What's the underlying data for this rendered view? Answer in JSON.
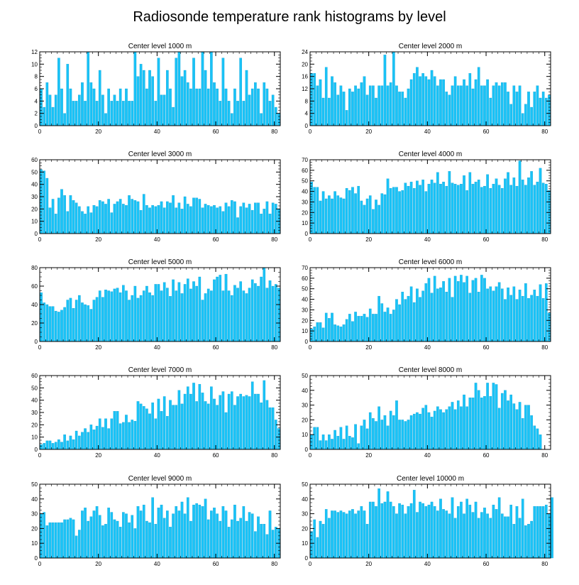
{
  "figure_title": "Radiosonde temperature rank histograms by level",
  "colors": {
    "bar": "#19c3f7",
    "bar_edge": "#0b9bd0",
    "axis": "#000000",
    "background": "#ffffff"
  },
  "chart_data": [
    {
      "type": "bar",
      "title": "Center level 1000 m",
      "x_ticks": [
        0,
        20,
        40,
        60,
        80
      ],
      "xlim": [
        0,
        82
      ],
      "ylim": [
        0,
        12
      ],
      "y_ticks": [
        0,
        2,
        4,
        6,
        8,
        10,
        12
      ],
      "values": [
        6,
        3,
        7,
        5,
        3,
        5,
        11,
        6,
        2,
        10,
        6,
        4,
        4,
        5,
        7,
        4,
        12,
        7,
        6,
        4,
        9,
        5,
        2,
        6,
        4,
        5,
        4,
        6,
        4,
        6,
        4,
        4,
        12,
        8,
        10,
        9,
        6,
        9,
        8,
        4,
        11,
        5,
        5,
        9,
        6,
        3,
        11,
        12,
        8,
        9,
        7,
        6,
        11,
        6,
        6,
        12,
        9,
        6,
        12,
        7,
        6,
        4,
        11,
        6,
        4,
        2,
        6,
        4,
        11,
        4,
        9,
        5,
        6,
        7,
        6,
        2,
        7,
        6,
        4,
        5,
        3,
        2
      ]
    },
    {
      "type": "bar",
      "title": "Center level 2000 m",
      "x_ticks": [
        0,
        20,
        40,
        60,
        80
      ],
      "xlim": [
        0,
        82
      ],
      "ylim": [
        0,
        24
      ],
      "y_ticks": [
        0,
        4,
        8,
        12,
        16,
        20,
        24
      ],
      "values": [
        17,
        17,
        13,
        15,
        9,
        19,
        9,
        16,
        14,
        10,
        13,
        11,
        5,
        12,
        11,
        13,
        12,
        14,
        16,
        10,
        13,
        13,
        9,
        13,
        13,
        23,
        13,
        14,
        24,
        13,
        11,
        11,
        9,
        12,
        15,
        17,
        19,
        16,
        17,
        16,
        15,
        18,
        16,
        13,
        15,
        15,
        11,
        10,
        13,
        16,
        13,
        13,
        15,
        13,
        17,
        12,
        15,
        19,
        13,
        13,
        15,
        9,
        13,
        14,
        13,
        14,
        14,
        11,
        7,
        13,
        11,
        13,
        4,
        7,
        11,
        6,
        11,
        13,
        9,
        11,
        9,
        10
      ]
    },
    {
      "type": "bar",
      "title": "Center level 3000 m",
      "x_ticks": [
        0,
        20,
        40,
        60,
        80
      ],
      "xlim": [
        0,
        82
      ],
      "ylim": [
        0,
        60
      ],
      "y_ticks": [
        0,
        10,
        20,
        30,
        40,
        50,
        60
      ],
      "values": [
        52,
        51,
        45,
        21,
        28,
        16,
        29,
        36,
        31,
        18,
        31,
        27,
        25,
        22,
        18,
        16,
        22,
        17,
        23,
        22,
        27,
        26,
        24,
        28,
        17,
        24,
        26,
        28,
        24,
        23,
        31,
        28,
        27,
        26,
        19,
        32,
        23,
        21,
        23,
        22,
        23,
        26,
        21,
        26,
        25,
        31,
        21,
        25,
        20,
        30,
        24,
        22,
        29,
        29,
        28,
        21,
        24,
        23,
        22,
        23,
        21,
        22,
        18,
        25,
        22,
        27,
        26,
        13,
        22,
        25,
        21,
        24,
        19,
        25,
        25,
        16,
        20,
        26,
        16,
        25,
        24,
        20
      ]
    },
    {
      "type": "bar",
      "title": "Center level 4000 m",
      "x_ticks": [
        0,
        20,
        40,
        60,
        80
      ],
      "xlim": [
        0,
        82
      ],
      "ylim": [
        0,
        70
      ],
      "y_ticks": [
        0,
        10,
        20,
        30,
        40,
        50,
        60,
        70
      ],
      "values": [
        49,
        44,
        44,
        31,
        40,
        33,
        36,
        33,
        40,
        36,
        34,
        33,
        43,
        41,
        44,
        38,
        45,
        31,
        27,
        33,
        36,
        23,
        32,
        27,
        38,
        37,
        52,
        43,
        44,
        44,
        40,
        41,
        48,
        45,
        49,
        43,
        50,
        46,
        51,
        40,
        47,
        51,
        48,
        58,
        47,
        49,
        45,
        59,
        48,
        47,
        46,
        47,
        55,
        41,
        58,
        47,
        49,
        51,
        44,
        45,
        56,
        43,
        47,
        52,
        46,
        43,
        52,
        58,
        46,
        53,
        45,
        69,
        51,
        46,
        53,
        59,
        46,
        49,
        62,
        48,
        47,
        41
      ]
    },
    {
      "type": "bar",
      "title": "Center level 5000 m",
      "x_ticks": [
        0,
        20,
        40,
        60,
        80
      ],
      "xlim": [
        0,
        82
      ],
      "ylim": [
        0,
        80
      ],
      "y_ticks": [
        0,
        20,
        40,
        60,
        80
      ],
      "values": [
        53,
        42,
        40,
        38,
        38,
        33,
        32,
        34,
        37,
        45,
        47,
        36,
        45,
        50,
        42,
        40,
        39,
        35,
        45,
        48,
        55,
        48,
        56,
        55,
        54,
        57,
        58,
        53,
        61,
        55,
        45,
        50,
        60,
        47,
        50,
        55,
        60,
        53,
        50,
        62,
        62,
        55,
        64,
        58,
        49,
        67,
        55,
        64,
        52,
        62,
        68,
        57,
        65,
        60,
        70,
        45,
        52,
        57,
        55,
        67,
        70,
        72,
        55,
        73,
        55,
        50,
        61,
        58,
        65,
        55,
        52,
        58,
        67,
        63,
        60,
        70,
        80,
        58,
        66,
        60,
        62,
        58
      ]
    },
    {
      "type": "bar",
      "title": "Center level 6000 m",
      "x_ticks": [
        0,
        20,
        40,
        60,
        80
      ],
      "xlim": [
        0,
        82
      ],
      "ylim": [
        0,
        70
      ],
      "y_ticks": [
        0,
        10,
        20,
        30,
        40,
        50,
        60,
        70
      ],
      "values": [
        12,
        14,
        18,
        18,
        13,
        27,
        22,
        27,
        16,
        15,
        14,
        16,
        21,
        26,
        19,
        28,
        24,
        24,
        26,
        23,
        31,
        26,
        26,
        43,
        36,
        28,
        32,
        26,
        30,
        40,
        35,
        47,
        40,
        43,
        52,
        37,
        50,
        42,
        48,
        55,
        60,
        46,
        62,
        50,
        51,
        57,
        47,
        60,
        42,
        62,
        57,
        63,
        56,
        62,
        46,
        58,
        60,
        47,
        63,
        60,
        50,
        52,
        48,
        52,
        56,
        50,
        40,
        51,
        44,
        52,
        40,
        49,
        43,
        55,
        41,
        44,
        49,
        43,
        54,
        41,
        55,
        27
      ]
    },
    {
      "type": "bar",
      "title": "Center level 7000 m",
      "x_ticks": [
        0,
        20,
        40,
        60,
        80
      ],
      "xlim": [
        0,
        82
      ],
      "ylim": [
        0,
        60
      ],
      "y_ticks": [
        0,
        10,
        20,
        30,
        40,
        50,
        60
      ],
      "values": [
        4,
        5,
        7,
        7,
        5,
        6,
        8,
        6,
        12,
        7,
        11,
        8,
        15,
        11,
        14,
        17,
        14,
        20,
        16,
        19,
        25,
        18,
        25,
        17,
        25,
        31,
        31,
        21,
        22,
        28,
        22,
        24,
        23,
        39,
        37,
        35,
        33,
        29,
        38,
        25,
        41,
        31,
        43,
        27,
        40,
        36,
        36,
        48,
        37,
        45,
        51,
        45,
        54,
        39,
        53,
        46,
        39,
        37,
        51,
        41,
        36,
        44,
        47,
        30,
        45,
        47,
        36,
        43,
        45,
        43,
        44,
        43,
        55,
        45,
        45,
        38,
        56,
        40,
        34,
        34,
        24,
        17
      ]
    },
    {
      "type": "bar",
      "title": "Center level 8000 m",
      "x_ticks": [
        0,
        20,
        40,
        60,
        80
      ],
      "xlim": [
        0,
        82
      ],
      "ylim": [
        0,
        50
      ],
      "y_ticks": [
        0,
        10,
        20,
        30,
        40,
        50
      ],
      "values": [
        10,
        15,
        15,
        6,
        10,
        6,
        10,
        7,
        13,
        9,
        15,
        7,
        16,
        9,
        8,
        17,
        4,
        16,
        20,
        14,
        25,
        21,
        19,
        29,
        20,
        23,
        16,
        26,
        23,
        33,
        20,
        20,
        19,
        20,
        23,
        24,
        25,
        24,
        28,
        30,
        25,
        22,
        26,
        29,
        27,
        25,
        27,
        29,
        32,
        27,
        33,
        29,
        37,
        29,
        35,
        35,
        45,
        40,
        35,
        36,
        45,
        36,
        45,
        44,
        28,
        38,
        40,
        33,
        37,
        31,
        27,
        32,
        21,
        30,
        30,
        23,
        16,
        14,
        10
      ]
    },
    {
      "type": "bar",
      "title": "Center level 9000 m",
      "x_ticks": [
        0,
        20,
        40,
        60,
        80
      ],
      "xlim": [
        0,
        82
      ],
      "ylim": [
        0,
        50
      ],
      "y_ticks": [
        0,
        10,
        20,
        30,
        40,
        50
      ],
      "values": [
        30,
        31,
        22,
        24,
        24,
        24,
        24,
        24,
        26,
        26,
        27,
        26,
        15,
        19,
        32,
        34,
        25,
        28,
        32,
        35,
        29,
        22,
        23,
        34,
        31,
        26,
        25,
        21,
        31,
        30,
        24,
        29,
        20,
        35,
        32,
        36,
        25,
        24,
        41,
        23,
        34,
        36,
        27,
        32,
        21,
        30,
        35,
        32,
        38,
        30,
        41,
        25,
        36,
        37,
        36,
        35,
        40,
        26,
        32,
        34,
        30,
        25,
        35,
        32,
        21,
        26,
        36,
        25,
        27,
        35,
        25,
        31,
        30,
        18,
        28,
        23,
        23,
        16,
        32,
        19,
        21,
        20
      ]
    },
    {
      "type": "bar",
      "title": "Center level 10000 m",
      "x_ticks": [
        0,
        20,
        40,
        60,
        80
      ],
      "xlim": [
        0,
        82
      ],
      "ylim": [
        0,
        50
      ],
      "y_ticks": [
        0,
        10,
        20,
        30,
        40,
        50
      ],
      "values": [
        18,
        26,
        14,
        25,
        23,
        33,
        27,
        32,
        32,
        31,
        32,
        31,
        30,
        32,
        33,
        30,
        32,
        35,
        32,
        23,
        38,
        38,
        35,
        47,
        37,
        38,
        45,
        38,
        35,
        30,
        37,
        36,
        30,
        35,
        37,
        46,
        31,
        38,
        37,
        35,
        36,
        38,
        35,
        32,
        40,
        33,
        32,
        30,
        41,
        27,
        35,
        38,
        30,
        40,
        36,
        31,
        38,
        27,
        31,
        34,
        30,
        27,
        36,
        33,
        41,
        30,
        28,
        28,
        36,
        23,
        35,
        27,
        40,
        22,
        23,
        25,
        35,
        35,
        35,
        35,
        36,
        30,
        41
      ]
    }
  ]
}
